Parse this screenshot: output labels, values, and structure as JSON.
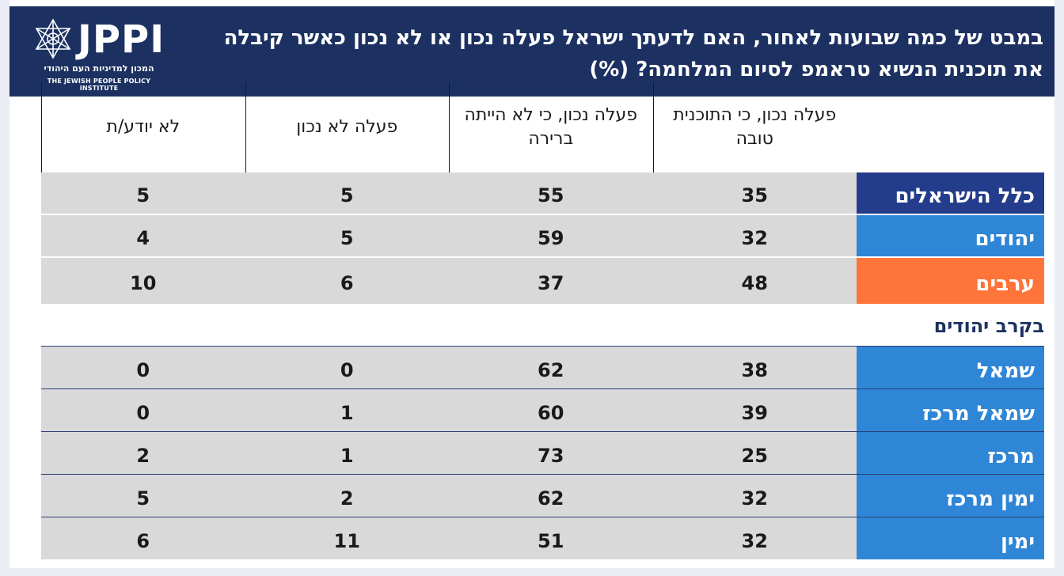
{
  "header": {
    "title": "במבט של כמה שבועות לאחור, האם לדעתך ישראל פעלה נכון או לא נכון כאשר קיבלה את תוכנית הנשיא טראמפ לסיום המלחמה? (%)",
    "logo_text": "JPPI",
    "logo_sub_he": "המכון למדיניות העם היהודי",
    "logo_sub_en": "THE JEWISH PEOPLE POLICY INSTITUTE"
  },
  "colors": {
    "header_bg": "#1c3161",
    "all_israelis": "#233c8c",
    "jews": "#2f86d6",
    "arabs": "#ff7438",
    "subgroup": "#2f86d6",
    "cell_bg": "#d9d9d9"
  },
  "chart_data": {
    "type": "table",
    "title": "במבט של כמה שבועות לאחור, האם לדעתך ישראל פעלה נכון או לא נכון כאשר קיבלה את תוכנית הנשיא טראמפ לסיום המלחמה? (%)",
    "columns": [
      "פעלה נכון, כי התוכנית טובה",
      "פעלה נכון, כי לא הייתה ברירה",
      "פעלה לא נכון",
      "לא יודע/ת"
    ],
    "subgroup_heading": "בקרב יהודים",
    "groups": [
      {
        "label": "כלל הישראלים",
        "color": "#233c8c",
        "values": [
          35,
          55,
          5,
          5
        ]
      },
      {
        "label": "יהודים",
        "color": "#2f86d6",
        "values": [
          32,
          59,
          5,
          4
        ]
      },
      {
        "label": "ערבים",
        "color": "#ff7438",
        "values": [
          48,
          37,
          6,
          10
        ]
      }
    ],
    "subgroups": [
      {
        "label": "שמאל",
        "color": "#2f86d6",
        "values": [
          38,
          62,
          0,
          0
        ]
      },
      {
        "label": "שמאל מרכז",
        "color": "#2f86d6",
        "values": [
          39,
          60,
          1,
          0
        ]
      },
      {
        "label": "מרכז",
        "color": "#2f86d6",
        "values": [
          25,
          73,
          1,
          2
        ]
      },
      {
        "label": "ימין מרכז",
        "color": "#2f86d6",
        "values": [
          32,
          62,
          2,
          5
        ]
      },
      {
        "label": "ימין",
        "color": "#2f86d6",
        "values": [
          32,
          51,
          11,
          6
        ]
      }
    ]
  }
}
